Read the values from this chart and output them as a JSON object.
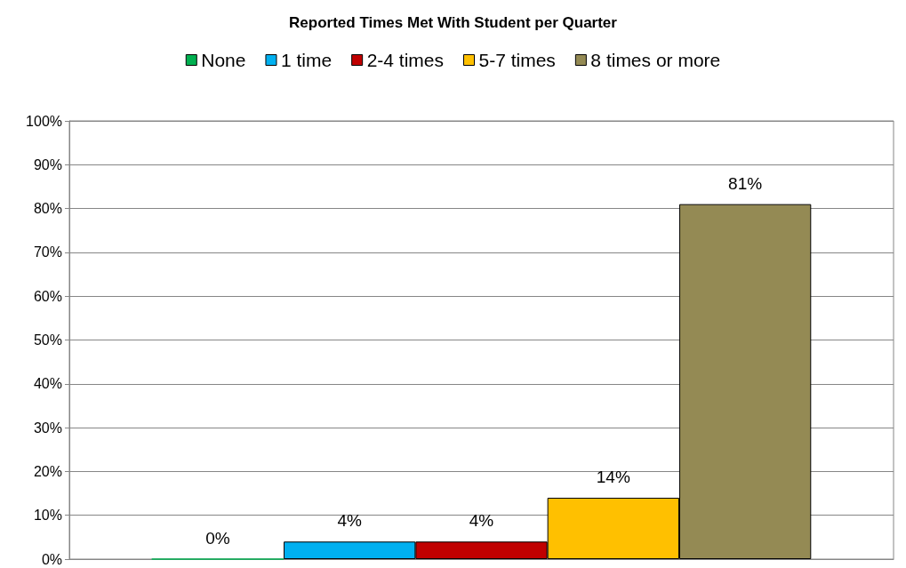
{
  "chart_data": {
    "type": "bar",
    "title": "Reported Times Met With Student per Quarter",
    "categories": [
      null
    ],
    "series": [
      {
        "name": "None",
        "color": "#00b050",
        "values": [
          0
        ],
        "value_labels": [
          "0%"
        ]
      },
      {
        "name": "1 time",
        "color": "#00b0f0",
        "values": [
          4
        ],
        "value_labels": [
          "4%"
        ]
      },
      {
        "name": "2-4 times",
        "color": "#c00000",
        "values": [
          4
        ],
        "value_labels": [
          "4%"
        ]
      },
      {
        "name": "5-7 times",
        "color": "#ffc000",
        "values": [
          14
        ],
        "value_labels": [
          "14%"
        ]
      },
      {
        "name": "8 times or more",
        "color": "#948a54",
        "values": [
          81
        ],
        "value_labels": [
          "81%"
        ]
      }
    ],
    "ylim": [
      0,
      100
    ],
    "yticks": [
      {
        "value": 0,
        "label": "0%"
      },
      {
        "value": 10,
        "label": "10%"
      },
      {
        "value": 20,
        "label": "20%"
      },
      {
        "value": 30,
        "label": "30%"
      },
      {
        "value": 40,
        "label": "40%"
      },
      {
        "value": 50,
        "label": "50%"
      },
      {
        "value": 60,
        "label": "60%"
      },
      {
        "value": 70,
        "label": "70%"
      },
      {
        "value": 80,
        "label": "80%"
      },
      {
        "value": 90,
        "label": "90%"
      },
      {
        "value": 100,
        "label": "100%"
      }
    ],
    "grid": "y",
    "legend": "top"
  }
}
